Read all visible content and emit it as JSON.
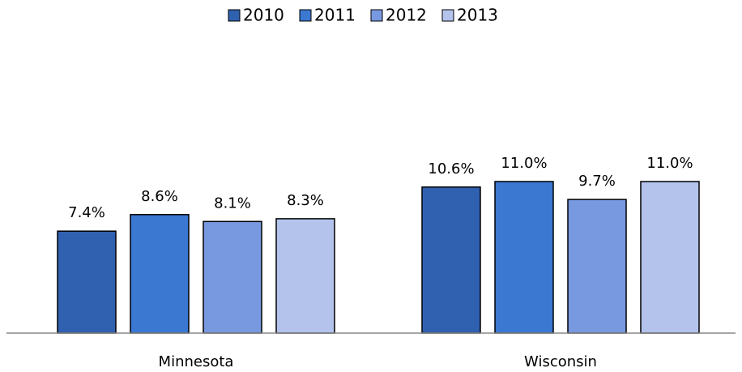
{
  "chart_data": {
    "type": "bar",
    "categories": [
      "Minnesota",
      "Wisconsin"
    ],
    "series": [
      {
        "name": "2010",
        "color": "#3061b0",
        "values": [
          7.4,
          10.6
        ],
        "value_labels": [
          "7.4%",
          "10.6%"
        ]
      },
      {
        "name": "2011",
        "color": "#3a78d2",
        "values": [
          8.6,
          11.0
        ],
        "value_labels": [
          "8.6%",
          "11.0%"
        ]
      },
      {
        "name": "2012",
        "color": "#7899e0",
        "values": [
          8.1,
          9.7
        ],
        "value_labels": [
          "8.1%",
          "9.7%"
        ]
      },
      {
        "name": "2013",
        "color": "#b3c3ec",
        "values": [
          8.3,
          11.0
        ],
        "value_labels": [
          "8.3%",
          "11.0%"
        ]
      }
    ],
    "ylim": [
      0,
      14
    ],
    "legend": "top"
  }
}
